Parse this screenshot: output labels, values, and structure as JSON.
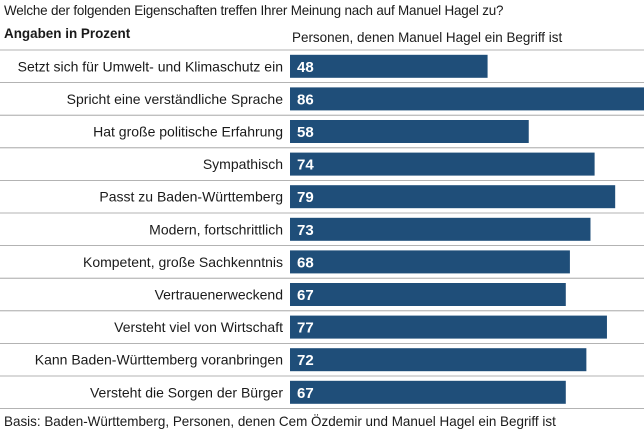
{
  "chart_data": {
    "type": "bar",
    "orientation": "horizontal",
    "title": "Welche der folgenden Eigenschaften treffen Ihrer Meinung nach auf Manuel Hagel zu?",
    "units_label": "Angaben in Prozent",
    "series_name": "Personen, denen Manuel Hagel ein Begriff ist",
    "categories": [
      "Setzt sich für Umwelt- und Klimaschutz ein",
      "Spricht eine verständliche Sprache",
      "Hat große politische Erfahrung",
      "Sympathisch",
      "Passt zu Baden-Württemberg",
      "Modern, fortschrittlich",
      "Kompetent, große Sachkenntnis",
      "Vertrauenerweckend",
      "Versteht viel von Wirtschaft",
      "Kann Baden-Württemberg voranbringen",
      "Versteht die Sorgen der Bürger"
    ],
    "values": [
      48,
      86,
      58,
      74,
      79,
      73,
      68,
      67,
      77,
      72,
      67
    ],
    "xlim": [
      0,
      86
    ],
    "bar_color": "#1f4e79",
    "label_color": "#ffffff",
    "footnote": "Basis: Baden-Württemberg, Personen, denen Cem Özdemir und Manuel Hagel ein Begriff ist"
  }
}
